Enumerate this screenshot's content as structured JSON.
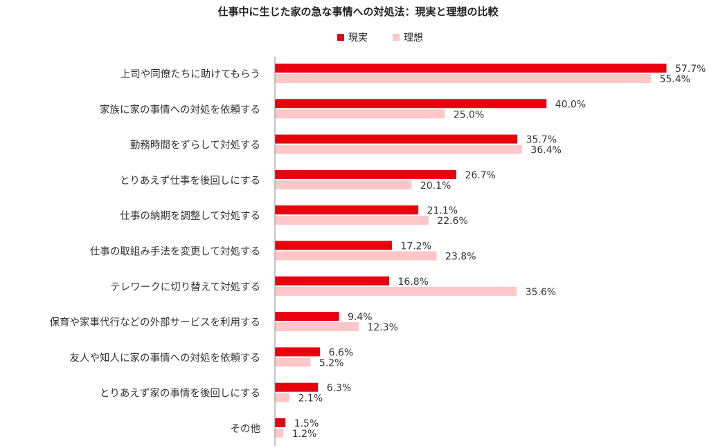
{
  "colors": {
    "real": "#e8000f",
    "ideal": "#ffc7c7",
    "axis": "#888888"
  },
  "chart_data": {
    "type": "bar",
    "orientation": "horizontal",
    "title": "仕事中に生じた家の急な事情への対処法：現実と理想の比較",
    "legend": "top",
    "categories": [
      "上司や同僚たちに助けてもらう",
      "家族に家の事情への対処を依頼する",
      "勤務時間をずらして対処する",
      "とりあえず仕事を後回しにする",
      "仕事の納期を調整して対処する",
      "仕事の取組み手法を変更して対処する",
      "テレワークに切り替えて対処する",
      "保育や家事代行などの外部サービスを利用する",
      "友人や知人に家の事情への対処を依頼する",
      "とりあえず家の事情を後回しにする",
      "その他"
    ],
    "series": [
      {
        "name": "現実",
        "values": [
          57.7,
          40.0,
          35.7,
          26.7,
          21.1,
          17.2,
          16.8,
          9.4,
          6.6,
          6.3,
          1.5
        ]
      },
      {
        "name": "理想",
        "values": [
          55.4,
          25.0,
          36.4,
          20.1,
          22.6,
          23.8,
          35.6,
          12.3,
          5.2,
          2.1,
          1.2
        ]
      }
    ],
    "value_labels": [
      [
        "57.7%",
        "40.0%",
        "35.7%",
        "26.7%",
        "21.1%",
        "17.2%",
        "16.8%",
        "9.4%",
        "6.6%",
        "6.3%",
        "1.5%"
      ],
      [
        "55.4%",
        "25.0%",
        "36.4%",
        "20.1%",
        "22.6%",
        "23.8%",
        "35.6%",
        "12.3%",
        "5.2%",
        "2.1%",
        "1.2%"
      ]
    ],
    "xlim": [
      0,
      60
    ],
    "grid": false
  }
}
